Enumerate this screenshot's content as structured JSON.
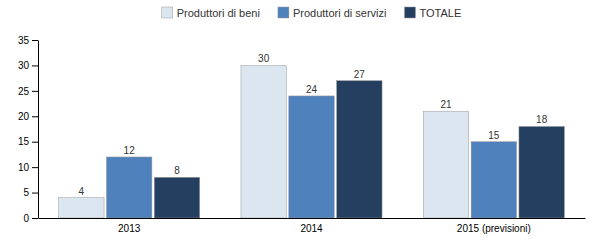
{
  "chart_data": {
    "type": "bar",
    "categories": [
      "2013",
      "2014",
      "2015 (previsioni)"
    ],
    "series": [
      {
        "name": "Produttori di beni",
        "color": "#dce6f1",
        "values": [
          4,
          30,
          21
        ]
      },
      {
        "name": "Produttori di servizi",
        "color": "#4f81bd",
        "values": [
          12,
          24,
          15
        ]
      },
      {
        "name": "TOTALE",
        "color": "#243f60",
        "values": [
          8,
          27,
          18
        ]
      }
    ],
    "ylim": [
      0,
      35
    ],
    "yticks": [
      0,
      5,
      10,
      15,
      20,
      25,
      30,
      35
    ],
    "grid": false,
    "legend": "top",
    "data_labels": true
  }
}
